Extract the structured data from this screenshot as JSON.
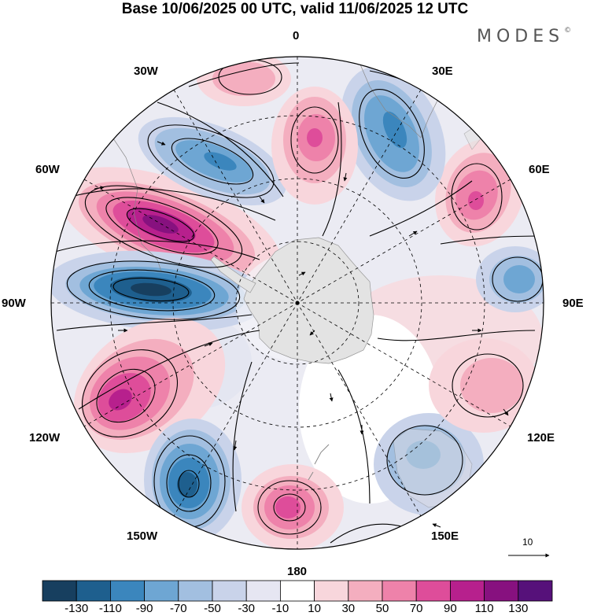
{
  "title": "Base 10/06/2025 00 UTC, valid 11/06/2025 12 UTC",
  "brand": {
    "text": "MODES",
    "mark": "©"
  },
  "longitude_labels": {
    "top": "0",
    "lon_30e": "30E",
    "lon_60e": "60E",
    "lon_90e": "90E",
    "lon_120e": "120E",
    "lon_150e": "150E",
    "bottom": "180",
    "lon_150w": "150W",
    "lon_120w": "120W",
    "lon_90w": "90W",
    "lon_60w": "60W",
    "lon_30w": "30W"
  },
  "reference_vector": {
    "label": "10"
  },
  "colorbar": {
    "ticks": [
      "-130",
      "-110",
      "-90",
      "-70",
      "-50",
      "-30",
      "-10",
      "10",
      "30",
      "50",
      "70",
      "90",
      "110",
      "130"
    ],
    "colors": [
      "#173f5f",
      "#1e5f8e",
      "#3b86bd",
      "#6ea6d3",
      "#a2bfe0",
      "#c9d3ea",
      "#e6e6f2",
      "#ffffff",
      "#f8d6dc",
      "#f4aebf",
      "#ee82aa",
      "#de4d9a",
      "#b7208d",
      "#87117f",
      "#56117a"
    ]
  }
}
